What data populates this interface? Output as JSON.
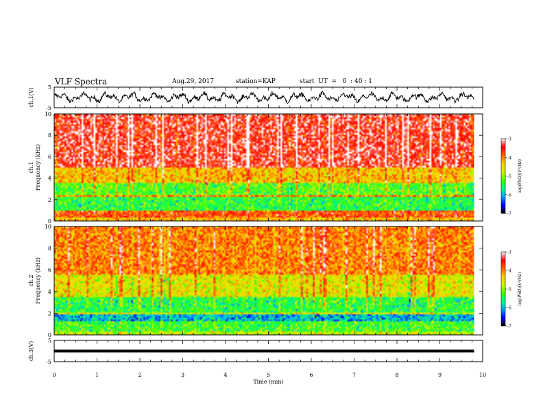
{
  "header": {
    "title": "VLF Spectra",
    "date": "Aug.29, 2017",
    "station": "station=KAP",
    "start": "start  UT  =   0  : 40 : 1"
  },
  "colors": {
    "colormap": [
      "#000000",
      "#0000ff",
      "#00a0ff",
      "#00ff80",
      "#40ff00",
      "#d8f000",
      "#ffd000",
      "#ff6000",
      "#ff0000",
      "#ffffff"
    ],
    "trace": "#000000"
  },
  "chart_data": [
    {
      "type": "line",
      "name": "ch1-waveform",
      "ylabel": "ch.1(V)",
      "ylim": [
        -5,
        5
      ],
      "yticks": [
        "5",
        "-5"
      ],
      "xlim": [
        0,
        10
      ],
      "x": [
        0,
        9.8
      ],
      "amplitude_range": [
        -3,
        3
      ]
    },
    {
      "type": "heatmap",
      "name": "ch1-spectrogram",
      "ylabel_line1": "ch.1",
      "ylabel_line2": "Frequency  (kHz)",
      "ylim": [
        0,
        10
      ],
      "yticks": [
        "0",
        "2",
        "4",
        "6",
        "8",
        "10"
      ],
      "xlim": [
        0,
        10
      ],
      "colorbar": {
        "label": "log(PSD)(V²/Hz)",
        "range": [
          -7,
          -3
        ],
        "ticks": [
          "-3",
          "-4",
          "-5",
          "-6",
          "-7"
        ]
      },
      "bands": [
        {
          "f": [
            0,
            0.4
          ],
          "level": -4.3
        },
        {
          "f": [
            0.4,
            1.0
          ],
          "level": -3.8
        },
        {
          "f": [
            1.0,
            2.2
          ],
          "level": -5.4
        },
        {
          "f": [
            2.2,
            2.4
          ],
          "level": -4.0
        },
        {
          "f": [
            2.4,
            3.5
          ],
          "level": -5.2
        },
        {
          "f": [
            3.5,
            5.0
          ],
          "level": -4.3
        },
        {
          "f": [
            5.0,
            10.0
          ],
          "level": -3.4
        }
      ]
    },
    {
      "type": "heatmap",
      "name": "ch2-spectrogram",
      "ylabel_line1": "ch.2",
      "ylabel_line2": "Frequency  (kHz)",
      "ylim": [
        0,
        10
      ],
      "yticks": [
        "0",
        "2",
        "4",
        "6",
        "8",
        "10"
      ],
      "xlim": [
        0,
        10
      ],
      "colorbar": {
        "label": "log(PSD)(V²/Hz)",
        "range": [
          -7,
          -3
        ],
        "ticks": [
          "-3",
          "-4",
          "-5",
          "-6",
          "-7"
        ]
      },
      "bands": [
        {
          "f": [
            0,
            0.3
          ],
          "level": -4.8
        },
        {
          "f": [
            0.3,
            1.2
          ],
          "level": -5.3
        },
        {
          "f": [
            1.2,
            1.9
          ],
          "level": -6.0
        },
        {
          "f": [
            1.9,
            2.1
          ],
          "level": -4.6
        },
        {
          "f": [
            2.1,
            3.5
          ],
          "level": -5.4
        },
        {
          "f": [
            3.5,
            5.5
          ],
          "level": -4.6
        },
        {
          "f": [
            5.5,
            10.0
          ],
          "level": -4.0
        }
      ]
    },
    {
      "type": "line",
      "name": "ch3-waveform",
      "ylabel": "ch.3(V)",
      "ylim": [
        -5,
        5
      ],
      "yticks": [
        "5",
        "-5"
      ],
      "xlim": [
        0,
        10
      ],
      "x": [
        0,
        9.8
      ],
      "y": [
        0,
        0
      ]
    }
  ],
  "xaxis": {
    "label": "Time  (min)",
    "ticks": [
      "0",
      "1",
      "2",
      "3",
      "4",
      "5",
      "6",
      "7",
      "8",
      "9",
      "10"
    ]
  }
}
